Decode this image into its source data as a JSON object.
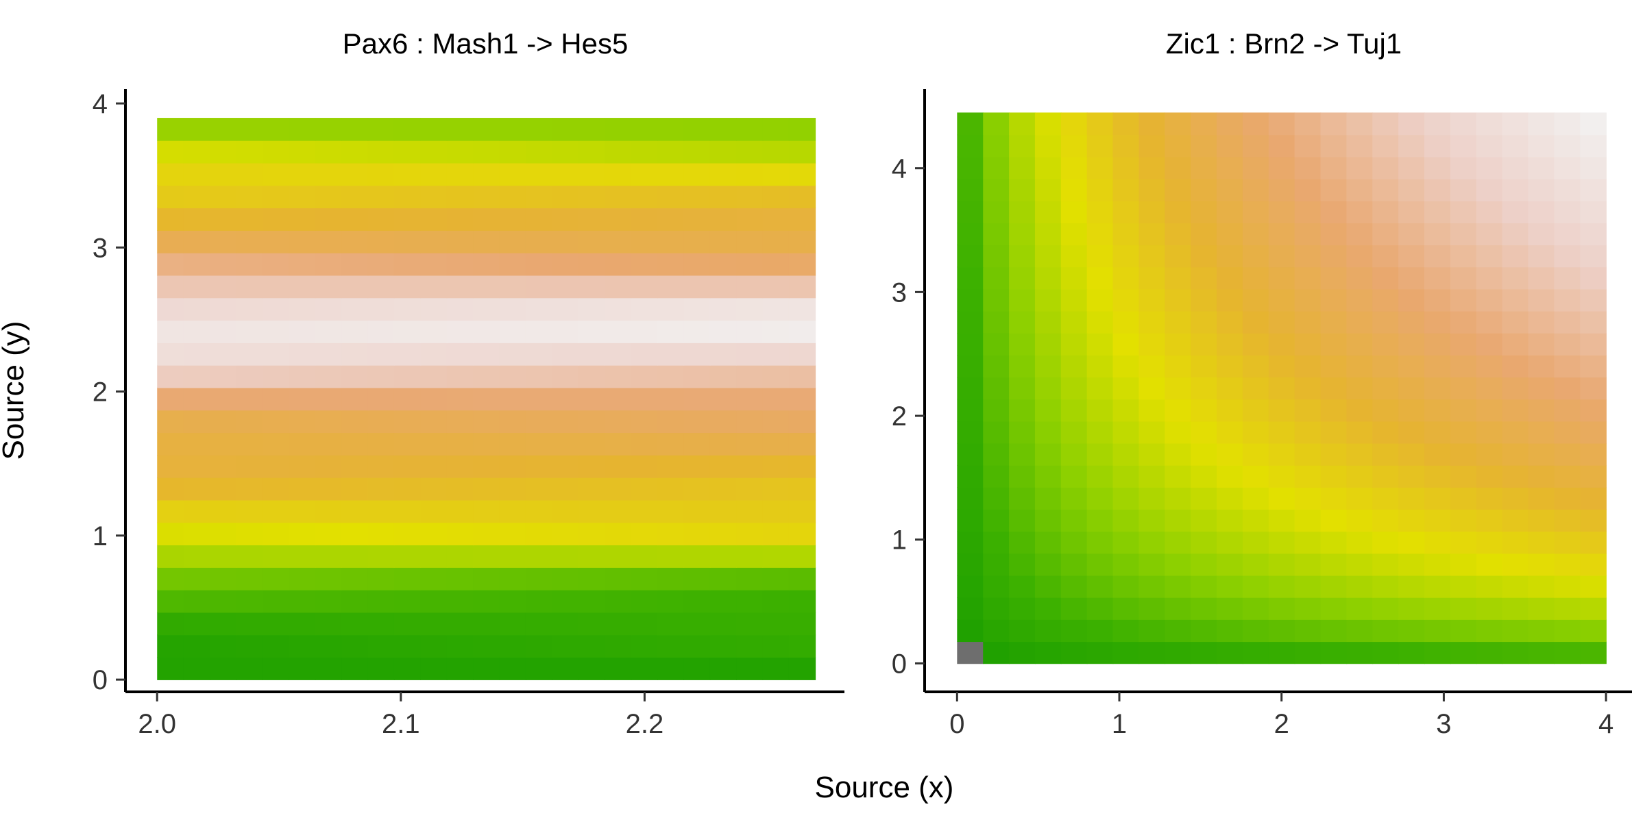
{
  "figure": {
    "xlabel": "Source (x)",
    "ylabel": "Source (y)"
  },
  "colors": {
    "na": "#6e6e6e",
    "palette_note": "terrain-like: green -> yellow -> orange -> pink -> near-white",
    "stops": [
      "#129a00",
      "#3bb000",
      "#8dd000",
      "#e3e000",
      "#e6b430",
      "#e9a870",
      "#edd0c8",
      "#f2f2f2"
    ]
  },
  "chart_data": [
    {
      "type": "heatmap",
      "title": "Pax6 : Mash1 -> Hes5",
      "xlim": [
        1.987,
        2.282
      ],
      "ylim": [
        -0.085,
        4.1
      ],
      "x_range": [
        2.0,
        2.27
      ],
      "y_range": [
        0.0,
        3.9
      ],
      "nx": 25,
      "ny": 25,
      "x_ticks": [
        2.0,
        2.1,
        2.2
      ],
      "x_tick_labels": [
        "2.0",
        "2.1",
        "2.2"
      ],
      "y_ticks": [
        0,
        1,
        2,
        3,
        4
      ],
      "y_tick_labels": [
        "0",
        "1",
        "2",
        "3",
        "4"
      ],
      "row_levels_bottom_to_top": [
        0.06,
        0.09,
        0.12,
        0.16,
        0.22,
        0.34,
        0.44,
        0.49,
        0.54,
        0.58,
        0.62,
        0.66,
        0.72,
        0.82,
        0.9,
        0.96,
        0.92,
        0.82,
        0.72,
        0.64,
        0.58,
        0.52,
        0.46,
        0.38,
        0.3
      ],
      "column_drift": 0.05
    },
    {
      "type": "heatmap",
      "title": "Zic1 : Brn2 -> Tuj1",
      "xlim": [
        -0.2,
        4.16
      ],
      "ylim": [
        -0.23,
        4.64
      ],
      "x_range": [
        0.0,
        4.0
      ],
      "y_range": [
        0.0,
        4.45
      ],
      "nx": 25,
      "ny": 25,
      "x_ticks": [
        0,
        1,
        2,
        3,
        4
      ],
      "x_tick_labels": [
        "0",
        "1",
        "2",
        "3",
        "4"
      ],
      "y_ticks": [
        0,
        1,
        2,
        3,
        4
      ],
      "y_tick_labels": [
        "0",
        "1",
        "2",
        "3",
        "4"
      ],
      "value_formula": "product of x and y",
      "na_cells": [
        [
          0,
          0
        ]
      ]
    }
  ]
}
